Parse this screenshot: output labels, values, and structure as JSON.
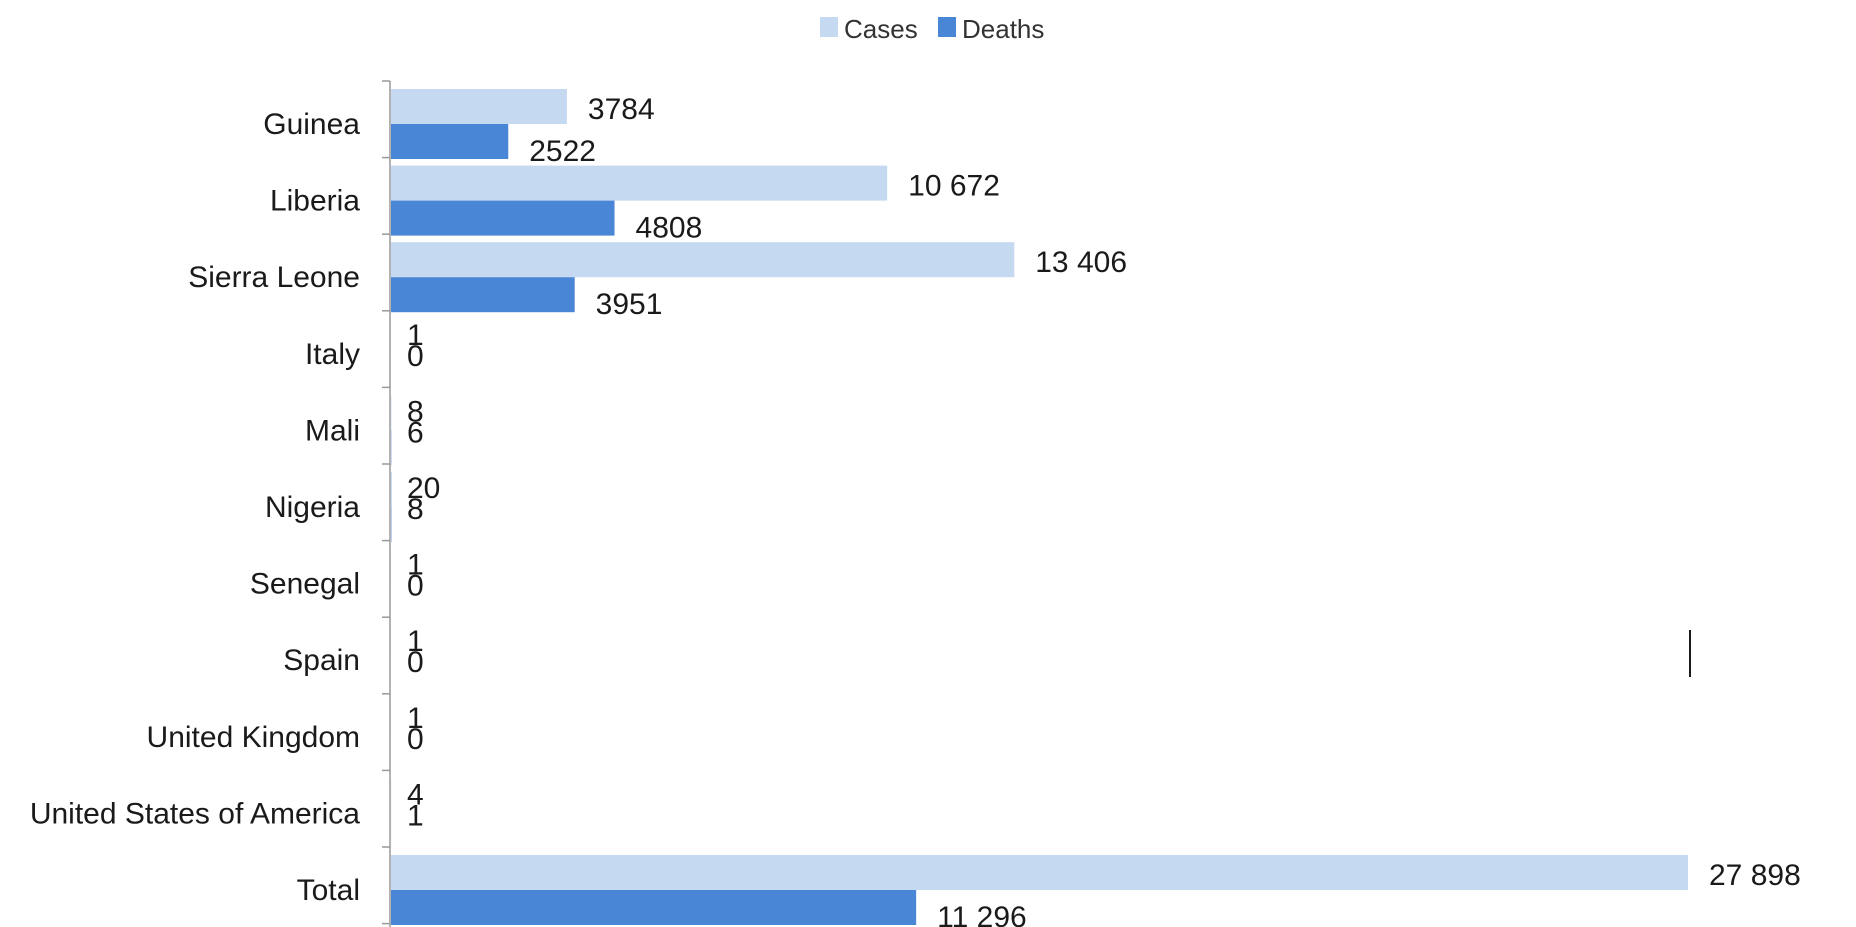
{
  "chart_data": {
    "type": "bar",
    "orientation": "horizontal",
    "categories": [
      "Guinea",
      "Liberia",
      "Sierra Leone",
      "Italy",
      "Mali",
      "Nigeria",
      "Senegal",
      "Spain",
      "United Kingdom",
      "United States of America",
      "Total"
    ],
    "series": [
      {
        "name": "Cases",
        "color": "#c5d9f1",
        "values": [
          3784,
          10672,
          13406,
          1,
          8,
          20,
          1,
          1,
          1,
          4,
          27898
        ],
        "labels": [
          "3784",
          "10 672",
          "13 406",
          "1",
          "8",
          "20",
          "1",
          "1",
          "1",
          "4",
          "27 898"
        ]
      },
      {
        "name": "Deaths",
        "color": "#4a86d6",
        "values": [
          2522,
          4808,
          3951,
          0,
          6,
          8,
          0,
          0,
          0,
          1,
          11296
        ],
        "labels": [
          "2522",
          "4808",
          "3951",
          "0",
          "6",
          "8",
          "0",
          "0",
          "0",
          "1",
          "11 296"
        ]
      }
    ],
    "xlim": [
      0,
      27898
    ],
    "grid": false,
    "legend_position": "top-center",
    "axis_color": "#999999"
  }
}
